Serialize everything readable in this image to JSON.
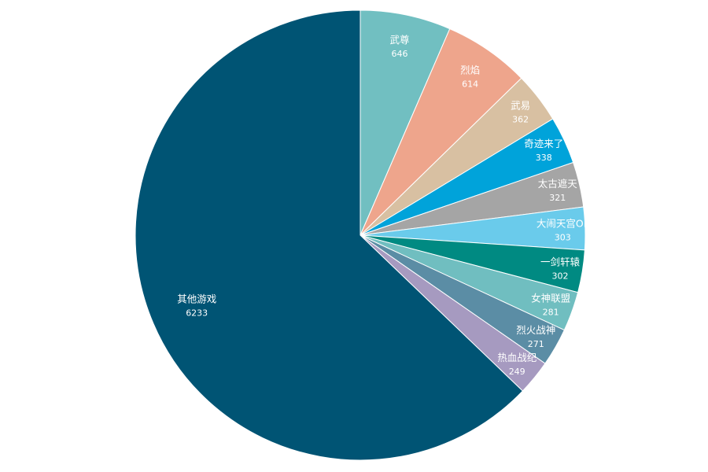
{
  "chart_data": {
    "type": "pie",
    "title": "",
    "legend": "none",
    "start": "top",
    "direction": "clockwise",
    "slices": [
      {
        "label": "武尊",
        "value": 646,
        "color": "#71BFC1"
      },
      {
        "label": "烈焰",
        "value": 614,
        "color": "#EEA58C"
      },
      {
        "label": "武易",
        "value": 362,
        "color": "#D8C0A2"
      },
      {
        "label": "奇迹来了",
        "value": 338,
        "color": "#00A3DA"
      },
      {
        "label": "太古遮天",
        "value": 321,
        "color": "#A5A5A5"
      },
      {
        "label": "大闹天宫OL",
        "value": 303,
        "color": "#6ACBEB"
      },
      {
        "label": "一剑轩辕",
        "value": 302,
        "color": "#008A82"
      },
      {
        "label": "女神联盟",
        "value": 281,
        "color": "#70BEC0"
      },
      {
        "label": "烈火战神",
        "value": 271,
        "color": "#5B8DA5"
      },
      {
        "label": "热血战纪",
        "value": 249,
        "color": "#A69AC0"
      },
      {
        "label": "其他游戏",
        "value": 6233,
        "color": "#005474"
      }
    ]
  }
}
